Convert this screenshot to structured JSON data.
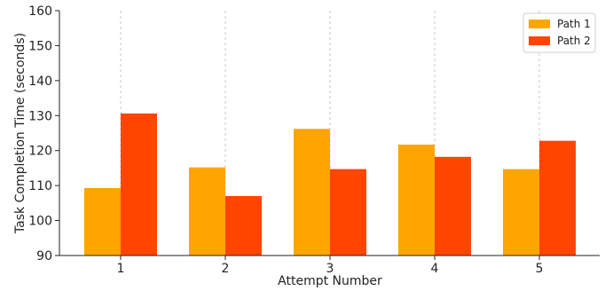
{
  "chart_data": {
    "type": "bar",
    "title": "",
    "xlabel": "Attempt Number",
    "ylabel": "Task Completion Time (seconds)",
    "categories": [
      "1",
      "2",
      "3",
      "4",
      "5"
    ],
    "series": [
      {
        "name": "Path 1",
        "color": "#FFA500",
        "values": [
          109.3,
          115.2,
          126.2,
          121.7,
          114.7
        ]
      },
      {
        "name": "Path 2",
        "color": "#FF4500",
        "values": [
          130.6,
          107.0,
          114.7,
          118.2,
          122.8
        ]
      }
    ],
    "ylim": [
      90,
      160
    ],
    "yticks": [
      90,
      100,
      110,
      120,
      130,
      140,
      150,
      160
    ],
    "grid": "vertical dashed gridlines at category positions",
    "legend": "top-right"
  }
}
